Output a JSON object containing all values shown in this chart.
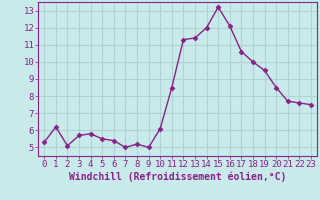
{
  "x": [
    0,
    1,
    2,
    3,
    4,
    5,
    6,
    7,
    8,
    9,
    10,
    11,
    12,
    13,
    14,
    15,
    16,
    17,
    18,
    19,
    20,
    21,
    22,
    23
  ],
  "y": [
    5.3,
    6.2,
    5.1,
    5.7,
    5.8,
    5.5,
    5.4,
    5.0,
    5.2,
    5.0,
    6.1,
    8.5,
    11.3,
    11.4,
    12.0,
    13.2,
    12.1,
    10.6,
    10.0,
    9.5,
    8.5,
    7.7,
    7.6,
    7.5
  ],
  "line_color": "#882288",
  "marker": "D",
  "marker_size": 2.5,
  "background_color": "#c8eaea",
  "grid_color": "#b0d4d4",
  "xlabel": "Windchill (Refroidissement éolien,°C)",
  "xlabel_fontsize": 7,
  "tick_fontsize": 6.5,
  "ylim": [
    4.5,
    13.5
  ],
  "xlim": [
    -0.5,
    23.5
  ],
  "yticks": [
    5,
    6,
    7,
    8,
    9,
    10,
    11,
    12,
    13
  ],
  "xticks": [
    0,
    1,
    2,
    3,
    4,
    5,
    6,
    7,
    8,
    9,
    10,
    11,
    12,
    13,
    14,
    15,
    16,
    17,
    18,
    19,
    20,
    21,
    22,
    23
  ],
  "spine_color": "#882288",
  "axes_label_color": "#882288",
  "tick_color": "#882288"
}
